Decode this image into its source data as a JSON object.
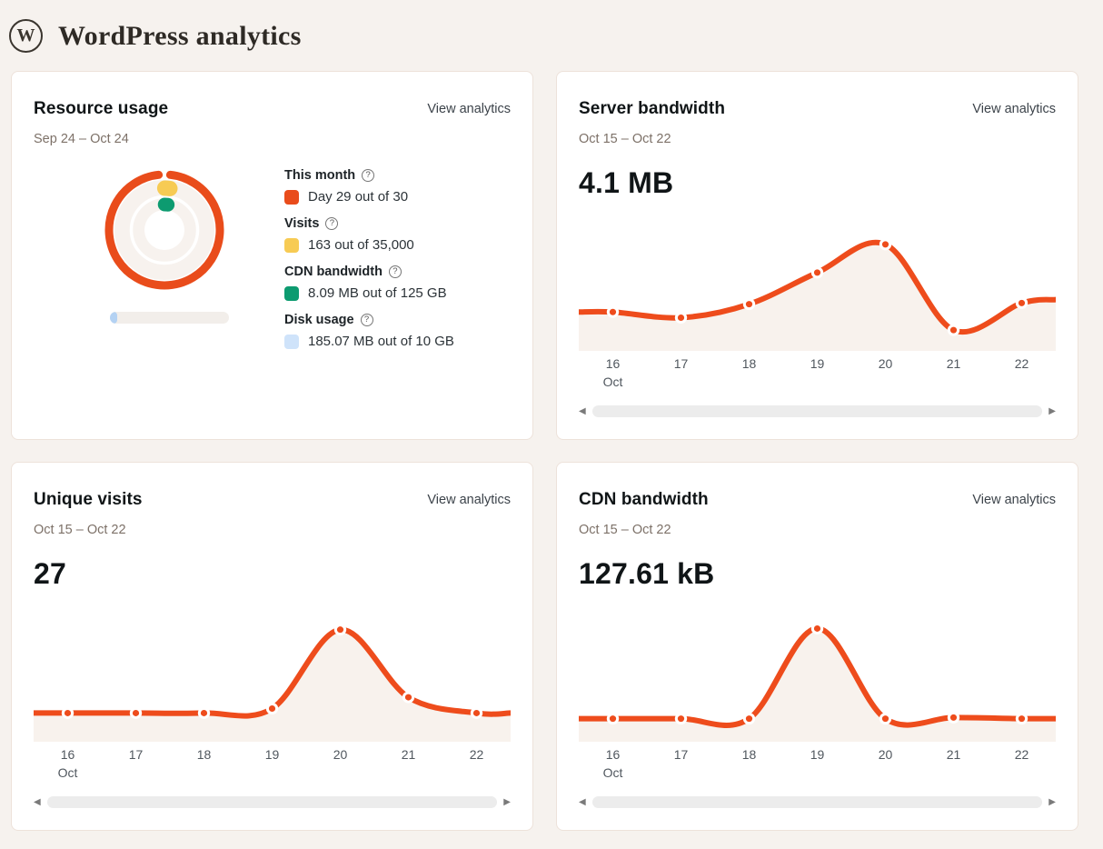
{
  "header": {
    "title": "WordPress analytics",
    "logo_letter": "W"
  },
  "icons": {
    "help": "?",
    "scroll_left": "◀",
    "scroll_right": "▶"
  },
  "colors": {
    "page_background": "#f6f2ee",
    "card_background": "#ffffff",
    "card_border": "#ede2da",
    "accent_orange": "#ee4c1c",
    "chart_fill": "#f8f2ed",
    "ring_track": "#f7f2ee",
    "scrollbar_track": "#ececec",
    "date_text": "#7d7168",
    "axis_text": "#50575e"
  },
  "cards": {
    "resource_usage": {
      "title": "Resource usage",
      "link_label": "View analytics",
      "date_range": "Sep 24 – Oct 24"
    },
    "server_bandwidth": {
      "title": "Server bandwidth",
      "link_label": "View analytics",
      "date_range": "Oct 15 – Oct 22"
    },
    "unique_visits": {
      "title": "Unique visits",
      "link_label": "View analytics",
      "date_range": "Oct 15 – Oct 22"
    },
    "cdn_bandwidth": {
      "title": "CDN bandwidth",
      "link_label": "View analytics",
      "date_range": "Oct 15 – Oct 22"
    }
  },
  "chart_data": [
    {
      "type": "radial-rings",
      "title": "Resource usage",
      "period": "Sep 24 – Oct 24",
      "series": [
        {
          "name": "This month",
          "display": "Day 29 out of 30",
          "value": 29,
          "max": 30,
          "percent": 96.7,
          "color": "#e94c1b"
        },
        {
          "name": "Visits",
          "display": "163 out of 35,000",
          "value": 163,
          "max": 35000,
          "percent": 0.5,
          "color": "#f7cb54"
        },
        {
          "name": "CDN bandwidth",
          "display": "8.09 MB out of 125 GB",
          "value_mb": 8.09,
          "max_gb": 125,
          "percent": 0.01,
          "color": "#0d9b70"
        },
        {
          "name": "Disk usage",
          "display": "185.07 MB out of 10 GB",
          "value_mb": 185.07,
          "max_gb": 10,
          "percent": 1.8,
          "color": "#cfe3fa",
          "bar_color": "#b4d2f3",
          "render_as": "horizontal-bar"
        }
      ]
    },
    {
      "type": "line",
      "title": "Server bandwidth",
      "period": "Oct 15 – Oct 22",
      "total": "4.1 MB",
      "x": [
        "16",
        "17",
        "18",
        "19",
        "20",
        "21",
        "22"
      ],
      "month_label": "Oct",
      "values": [
        28,
        23,
        35,
        63,
        88,
        12,
        36
      ],
      "edge_values": [
        28,
        39
      ],
      "y_scale": "relative 0-100 (chart shows no y-axis labels)",
      "line_color": "#ee4c1c",
      "fill_color": "#f8f2ed"
    },
    {
      "type": "line",
      "title": "Unique visits",
      "period": "Oct 15 – Oct 22",
      "total": "27",
      "x": [
        "16",
        "17",
        "18",
        "19",
        "20",
        "21",
        "22"
      ],
      "month_label": "Oct",
      "values": [
        19,
        19,
        19,
        23,
        93,
        33,
        19
      ],
      "edge_values": [
        19,
        19
      ],
      "y_scale": "relative 0-100 (chart shows no y-axis labels)",
      "line_color": "#ee4c1c",
      "fill_color": "#f8f2ed"
    },
    {
      "type": "line",
      "title": "CDN bandwidth",
      "period": "Oct 15 – Oct 22",
      "total": "127.61 kB",
      "x": [
        "16",
        "17",
        "18",
        "19",
        "20",
        "21",
        "22"
      ],
      "month_label": "Oct",
      "values": [
        14,
        14,
        14,
        94,
        14,
        15,
        14
      ],
      "edge_values": [
        14,
        14
      ],
      "y_scale": "relative 0-100 (chart shows no y-axis labels)",
      "line_color": "#ee4c1c",
      "fill_color": "#f8f2ed"
    }
  ]
}
